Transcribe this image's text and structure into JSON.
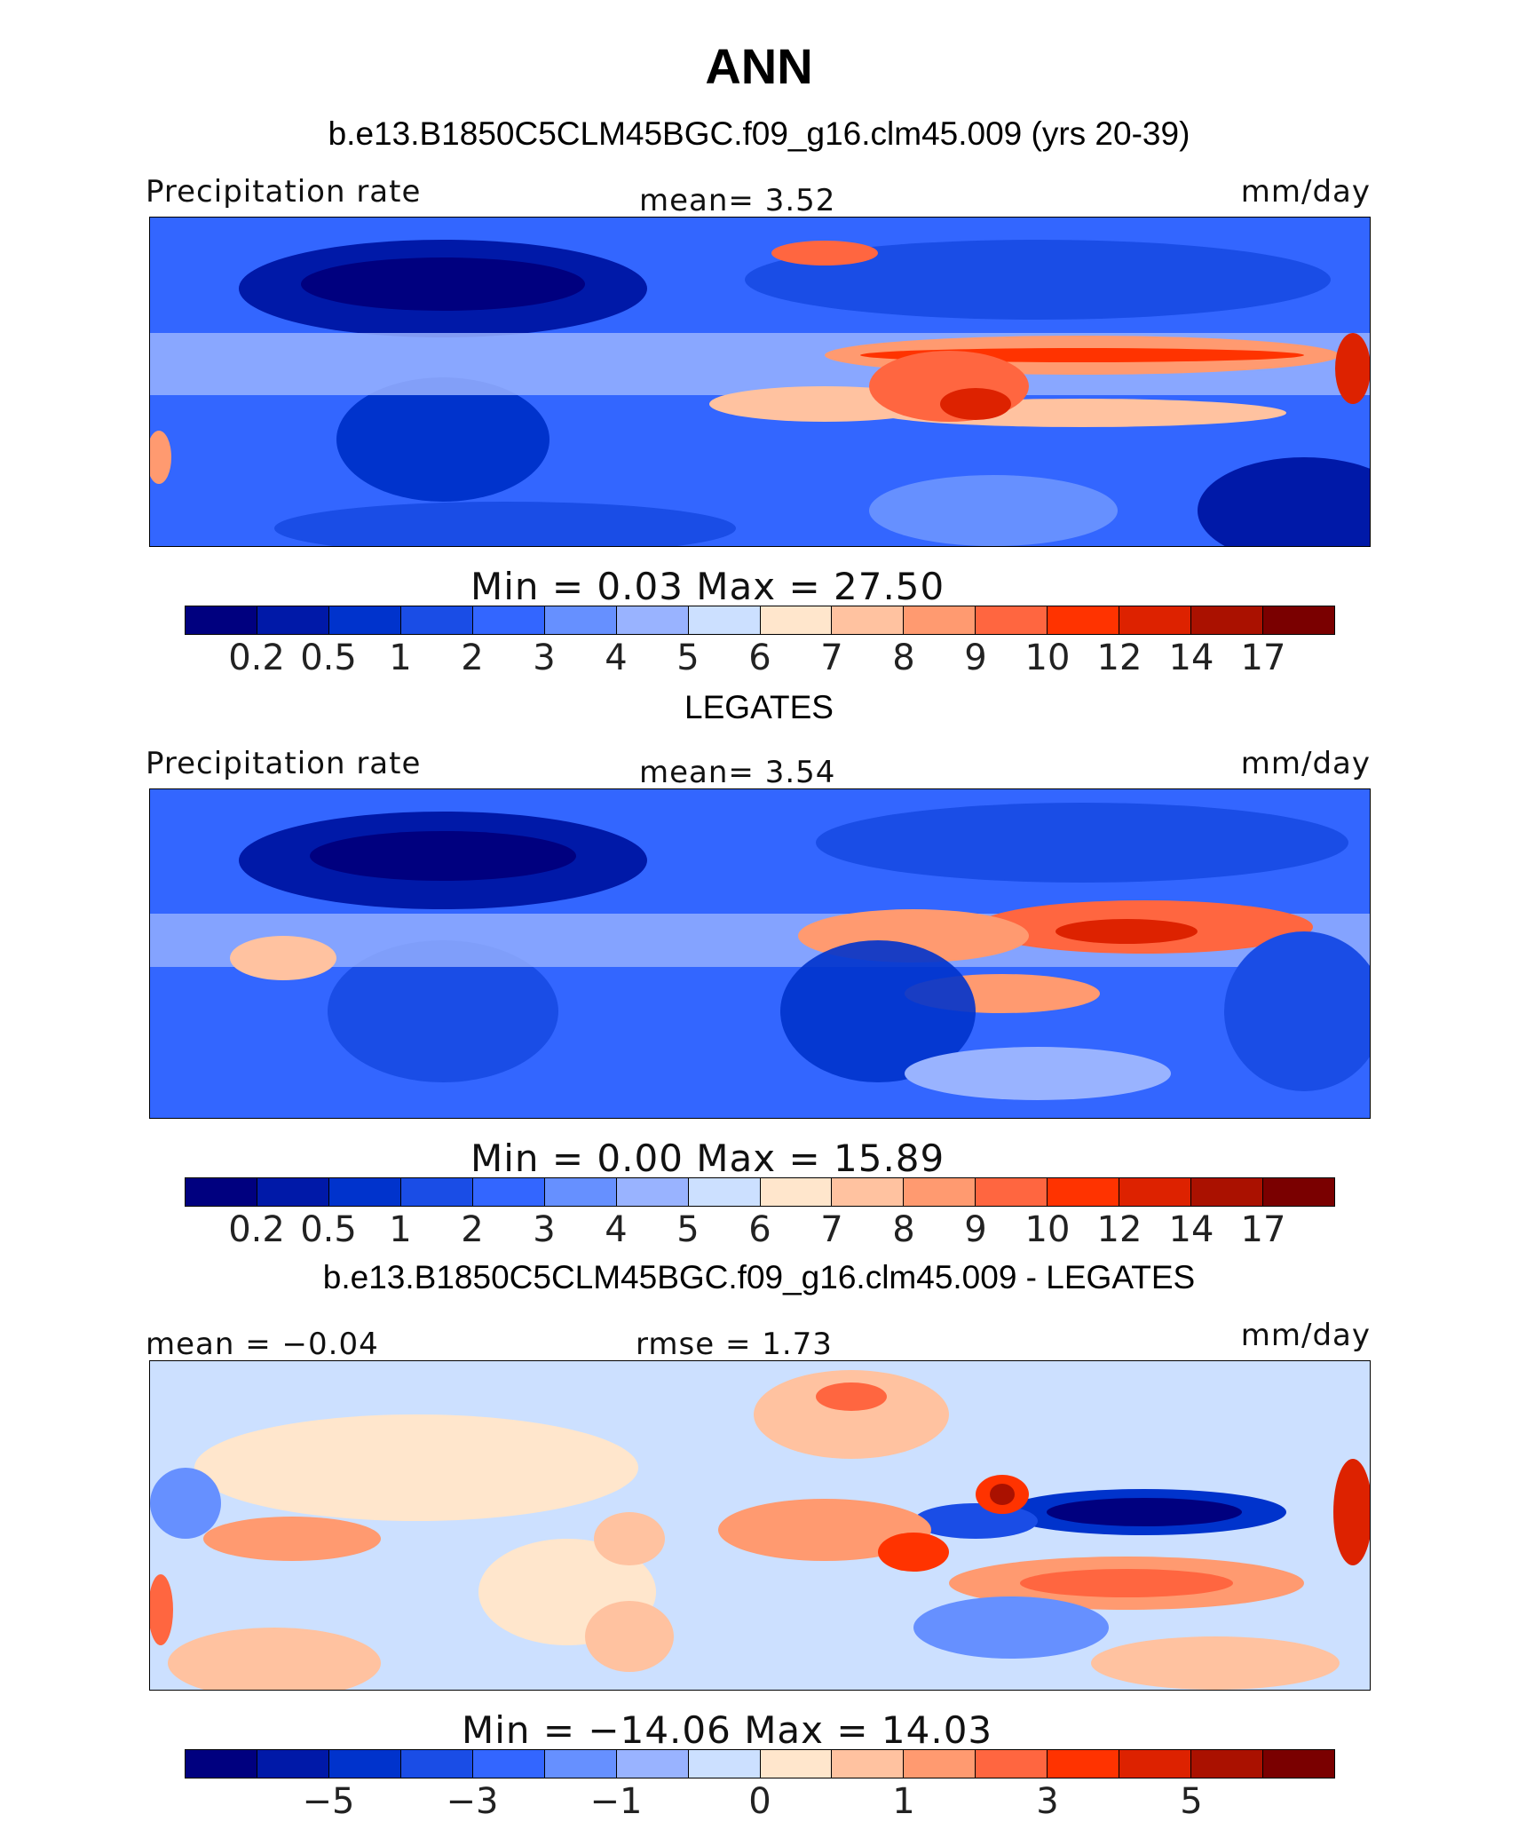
{
  "page_title": "ANN",
  "colors": {
    "palette": [
      "#00007f",
      "#0019a8",
      "#0033cc",
      "#1a4de6",
      "#3366ff",
      "#6690ff",
      "#99b3ff",
      "#cce0ff",
      "#ffe6cc",
      "#ffc2a0",
      "#ff9a70",
      "#ff6640",
      "#ff3300",
      "#dd2200",
      "#aa1100",
      "#7a0000"
    ]
  },
  "panels": [
    {
      "header": "b.e13.B1850C5CLM45BGC.f09_g16.clm45.009 (yrs 20-39)",
      "left_label": "Precipitation rate",
      "center_label": "mean=    3.52",
      "right_label": "mm/day",
      "minmax_label": "Min  =    0.03  Max  =   27.50",
      "colorbar_ticks": [
        "0.2",
        "0.5",
        "1",
        "2",
        "3",
        "4",
        "5",
        "6",
        "7",
        "8",
        "9",
        "10",
        "12",
        "14",
        "17"
      ]
    },
    {
      "header": "LEGATES",
      "left_label": "Precipitation rate",
      "center_label": "mean=    3.54",
      "right_label": "mm/day",
      "minmax_label": "Min  =    0.00  Max  =   15.89",
      "colorbar_ticks": [
        "0.2",
        "0.5",
        "1",
        "2",
        "3",
        "4",
        "5",
        "6",
        "7",
        "8",
        "9",
        "10",
        "12",
        "14",
        "17"
      ]
    },
    {
      "header": "b.e13.B1850C5CLM45BGC.f09_g16.clm45.009 - LEGATES",
      "left_label": "mean  =   −0.04",
      "center_label": "rmse  =    1.73",
      "right_label": "mm/day",
      "minmax_label": "Min  =  −14.06  Max  =   14.03",
      "colorbar_ticks": [
        "−5",
        "−3",
        "−1",
        "0",
        "1",
        "3",
        "5"
      ]
    }
  ],
  "chart_data": [
    {
      "type": "heatmap",
      "title": "b.e13.B1850C5CLM45BGC.f09_g16.clm45.009 (yrs 20-39)",
      "variable": "Precipitation rate",
      "units": "mm/day",
      "mean": 3.52,
      "min": 0.03,
      "max": 27.5,
      "levels": [
        0.2,
        0.5,
        1,
        2,
        3,
        4,
        5,
        6,
        7,
        8,
        9,
        10,
        12,
        14,
        17
      ]
    },
    {
      "type": "heatmap",
      "title": "LEGATES",
      "variable": "Precipitation rate",
      "units": "mm/day",
      "mean": 3.54,
      "min": 0.0,
      "max": 15.89,
      "levels": [
        0.2,
        0.5,
        1,
        2,
        3,
        4,
        5,
        6,
        7,
        8,
        9,
        10,
        12,
        14,
        17
      ]
    },
    {
      "type": "heatmap",
      "title": "b.e13.B1850C5CLM45BGC.f09_g16.clm45.009 - LEGATES",
      "units": "mm/day",
      "mean": -0.04,
      "rmse": 1.73,
      "min": -14.06,
      "max": 14.03,
      "levels": [
        -5,
        -3,
        -1,
        0,
        1,
        3,
        5
      ]
    }
  ]
}
